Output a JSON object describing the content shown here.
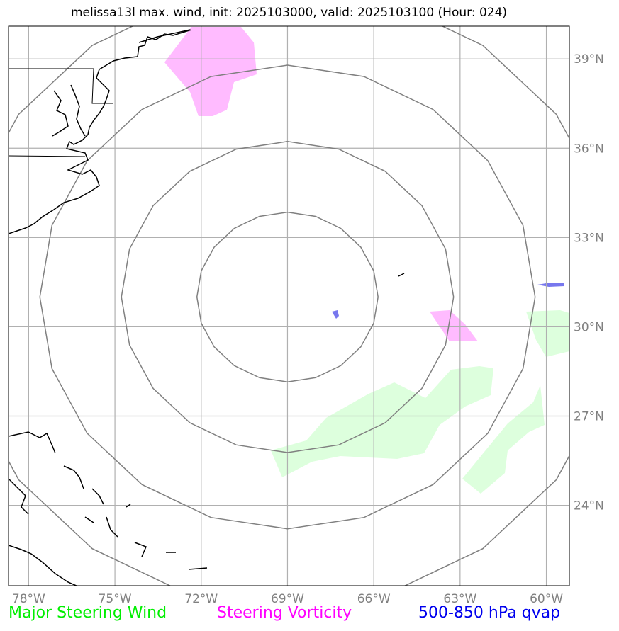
{
  "title": "melissa13l max. wind, init: 2025103000, valid: 2025103100 (Hour: 024)",
  "map": {
    "lon_range": [
      -78.7,
      -59.2
    ],
    "lat_range": [
      21.3,
      40.1
    ],
    "lon_ticks": [
      {
        "value": -78,
        "label": "78°W"
      },
      {
        "value": -75,
        "label": "75°W"
      },
      {
        "value": -72,
        "label": "72°W"
      },
      {
        "value": -69,
        "label": "69°W"
      },
      {
        "value": -66,
        "label": "66°W"
      },
      {
        "value": -63,
        "label": "63°W"
      },
      {
        "value": -60,
        "label": "60°W"
      }
    ],
    "lat_ticks": [
      {
        "value": 24,
        "label": "24°N"
      },
      {
        "value": 27,
        "label": "27°N"
      },
      {
        "value": 30,
        "label": "30°N"
      },
      {
        "value": 33,
        "label": "33°N"
      },
      {
        "value": 36,
        "label": "36°N"
      },
      {
        "value": 39,
        "label": "39°N"
      }
    ],
    "range_ring_center": {
      "lon": -69.0,
      "lat": 31.0
    },
    "colors": {
      "grid": "#b0b0b0",
      "rings": "#808080",
      "coast": "#000000",
      "steering_wind": "#ddffdd",
      "steering_vorticity": "#ffbbff",
      "qvap": "#7777ee"
    }
  },
  "legend": {
    "wind": {
      "label": "Major Steering Wind",
      "color": "#00ee00"
    },
    "vorticity": {
      "label": "Steering Vorticity",
      "color": "#ff00ff"
    },
    "qvap": {
      "label": "500-850 hPa qvap",
      "color": "#0000ee"
    }
  }
}
